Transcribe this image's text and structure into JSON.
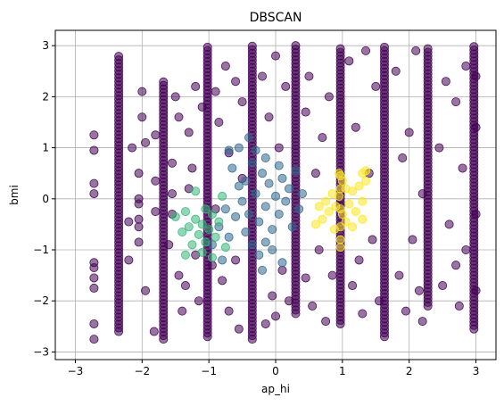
{
  "chart_data": {
    "type": "scatter",
    "title": "DBSCAN",
    "xlabel": "ap_hi",
    "ylabel": "bmi",
    "xlim": [
      -3.3,
      3.3
    ],
    "ylim": [
      -3.15,
      3.3
    ],
    "xticks": [
      -3,
      -2,
      -1,
      0,
      1,
      2,
      3
    ],
    "xtick_labels": [
      "−3",
      "−2",
      "−1",
      "0",
      "1",
      "2",
      "3"
    ],
    "yticks": [
      -3,
      -2,
      -1,
      0,
      1,
      2,
      3
    ],
    "ytick_labels": [
      "−3",
      "−2",
      "−1",
      "0",
      "1",
      "2",
      "3"
    ],
    "grid": true,
    "colormap": "viridis",
    "marker_alpha": 0.55,
    "colors": {
      "noise": "#440154",
      "cluster_1": "#31688e",
      "cluster_2": "#35b779",
      "cluster_3": "#fde725"
    },
    "columns": [
      {
        "x": -2.35,
        "ymin": -2.6,
        "ymax": 2.8,
        "cluster": "noise"
      },
      {
        "x": -1.68,
        "ymin": -2.75,
        "ymax": 2.3,
        "cluster": "noise"
      },
      {
        "x": -1.02,
        "ymin": -2.7,
        "ymax": 3.0,
        "cluster": "noise"
      },
      {
        "x": -0.35,
        "ymin": -2.75,
        "ymax": 3.0,
        "cluster": "noise"
      },
      {
        "x": 0.3,
        "ymin": -2.25,
        "ymax": 3.0,
        "cluster": "noise"
      },
      {
        "x": 0.97,
        "ymin": -2.45,
        "ymax": 3.0,
        "cluster": "noise"
      },
      {
        "x": 1.63,
        "ymin": -2.7,
        "ymax": 3.0,
        "cluster": "noise"
      },
      {
        "x": 2.28,
        "ymin": -2.1,
        "ymax": 3.0,
        "cluster": "noise"
      },
      {
        "x": 2.97,
        "ymin": -2.55,
        "ymax": 3.0,
        "cluster": "noise"
      }
    ],
    "series": [
      {
        "cluster": "noise",
        "points": [
          [
            -2.72,
            1.25
          ],
          [
            -2.72,
            0.95
          ],
          [
            -2.72,
            0.3
          ],
          [
            -2.72,
            0.1
          ],
          [
            -2.72,
            -1.25
          ],
          [
            -2.72,
            -1.35
          ],
          [
            -2.72,
            -1.55
          ],
          [
            -2.72,
            -1.75
          ],
          [
            -2.72,
            -2.45
          ],
          [
            -2.72,
            -2.75
          ],
          [
            -2.2,
            -0.45
          ],
          [
            -2.05,
            -0.1
          ],
          [
            -2.05,
            -0.4
          ],
          [
            -2.05,
            0.0
          ],
          [
            -2.05,
            -0.55
          ],
          [
            -2.05,
            -0.85
          ],
          [
            -2.05,
            0.5
          ],
          [
            -1.95,
            1.1
          ],
          [
            -1.95,
            -1.8
          ],
          [
            -1.82,
            -2.6
          ],
          [
            -2.0,
            1.6
          ],
          [
            -2.0,
            2.1
          ],
          [
            -1.8,
            0.35
          ],
          [
            -1.8,
            1.25
          ],
          [
            -1.8,
            -0.25
          ],
          [
            -1.55,
            0.1
          ],
          [
            -1.55,
            0.7
          ],
          [
            -1.55,
            -0.3
          ],
          [
            -1.45,
            1.6
          ],
          [
            -1.45,
            -1.5
          ],
          [
            -1.4,
            -2.2
          ],
          [
            -1.35,
            -1.7
          ],
          [
            -1.3,
            1.3
          ],
          [
            -1.3,
            0.2
          ],
          [
            -1.2,
            2.2
          ],
          [
            -1.2,
            -1.1
          ],
          [
            -1.15,
            -2.0
          ],
          [
            -1.1,
            1.8
          ],
          [
            -0.9,
            2.1
          ],
          [
            -0.9,
            -0.2
          ],
          [
            -0.85,
            1.5
          ],
          [
            -0.8,
            -1.6
          ],
          [
            -0.75,
            2.6
          ],
          [
            -0.7,
            -2.2
          ],
          [
            -0.7,
            0.9
          ],
          [
            -0.6,
            -1.2
          ],
          [
            -0.6,
            2.3
          ],
          [
            -0.55,
            -2.55
          ],
          [
            -0.5,
            0.4
          ],
          [
            -0.5,
            1.9
          ],
          [
            -0.2,
            2.4
          ],
          [
            -0.15,
            -2.45
          ],
          [
            -0.1,
            1.6
          ],
          [
            -0.05,
            -1.9
          ],
          [
            0.0,
            2.8
          ],
          [
            0.0,
            -2.3
          ],
          [
            0.05,
            1.0
          ],
          [
            0.1,
            -1.4
          ],
          [
            0.15,
            2.2
          ],
          [
            0.2,
            -2.0
          ],
          [
            0.45,
            1.7
          ],
          [
            0.45,
            -1.55
          ],
          [
            0.5,
            2.4
          ],
          [
            0.55,
            -2.1
          ],
          [
            0.6,
            0.5
          ],
          [
            0.65,
            -1.0
          ],
          [
            0.7,
            1.2
          ],
          [
            0.75,
            -2.4
          ],
          [
            0.8,
            2.0
          ],
          [
            0.85,
            -1.5
          ],
          [
            1.1,
            2.7
          ],
          [
            1.15,
            -1.7
          ],
          [
            1.2,
            1.4
          ],
          [
            1.25,
            -1.2
          ],
          [
            1.3,
            -2.25
          ],
          [
            1.35,
            2.9
          ],
          [
            1.4,
            0.5
          ],
          [
            1.45,
            -0.8
          ],
          [
            1.5,
            2.2
          ],
          [
            1.55,
            -2.0
          ],
          [
            1.8,
            2.5
          ],
          [
            1.85,
            -1.5
          ],
          [
            1.9,
            0.8
          ],
          [
            1.95,
            -2.2
          ],
          [
            2.0,
            1.3
          ],
          [
            2.05,
            -0.8
          ],
          [
            2.1,
            2.9
          ],
          [
            2.15,
            -1.8
          ],
          [
            2.2,
            0.1
          ],
          [
            2.2,
            -2.4
          ],
          [
            2.45,
            1.0
          ],
          [
            2.5,
            -1.7
          ],
          [
            2.55,
            2.3
          ],
          [
            2.6,
            -0.5
          ],
          [
            2.7,
            1.9
          ],
          [
            2.7,
            -1.3
          ],
          [
            2.75,
            -2.1
          ],
          [
            2.8,
            0.6
          ],
          [
            2.85,
            2.6
          ],
          [
            2.85,
            -1.0
          ],
          [
            3.0,
            1.4
          ],
          [
            3.0,
            -0.3
          ],
          [
            3.0,
            2.4
          ],
          [
            3.0,
            -1.8
          ],
          [
            -1.5,
            2.0
          ],
          [
            -1.6,
            -0.9
          ],
          [
            -2.15,
            1.0
          ],
          [
            -2.2,
            -1.2
          ],
          [
            -1.25,
            0.6
          ],
          [
            -0.95,
            -1.3
          ]
        ]
      },
      {
        "cluster": "cluster_1",
        "points": [
          [
            -0.7,
            0.95
          ],
          [
            -0.65,
            0.6
          ],
          [
            -0.55,
            0.25
          ],
          [
            -0.5,
            -0.05
          ],
          [
            -0.45,
            0.35
          ],
          [
            -0.4,
            -0.3
          ],
          [
            -0.35,
            0.7
          ],
          [
            -0.3,
            0.1
          ],
          [
            -0.25,
            -0.45
          ],
          [
            -0.2,
            0.5
          ],
          [
            -0.15,
            -0.15
          ],
          [
            -0.1,
            0.3
          ],
          [
            -0.05,
            -0.6
          ],
          [
            0.0,
            0.05
          ],
          [
            0.05,
            -0.3
          ],
          [
            0.1,
            0.4
          ],
          [
            0.15,
            -0.05
          ],
          [
            0.2,
            0.2
          ],
          [
            -0.6,
            -0.35
          ],
          [
            -0.45,
            -0.65
          ],
          [
            -0.35,
            -0.9
          ],
          [
            -0.25,
            -1.1
          ],
          [
            -0.15,
            -0.85
          ],
          [
            -0.05,
            -1.0
          ],
          [
            -0.3,
            0.95
          ],
          [
            -0.15,
            0.8
          ],
          [
            0.05,
            0.65
          ],
          [
            -0.75,
            -0.2
          ],
          [
            -0.85,
            -0.55
          ],
          [
            -0.95,
            -0.9
          ],
          [
            -0.8,
            -1.2
          ],
          [
            -0.7,
            -0.75
          ],
          [
            0.25,
            -0.55
          ],
          [
            0.35,
            -0.2
          ],
          [
            0.4,
            0.1
          ],
          [
            -0.4,
            1.2
          ],
          [
            -0.55,
            1.0
          ],
          [
            0.1,
            -1.25
          ],
          [
            -0.2,
            -1.4
          ],
          [
            0.3,
            0.55
          ]
        ]
      },
      {
        "cluster": "cluster_2",
        "points": [
          [
            -1.5,
            -0.35
          ],
          [
            -1.35,
            -0.25
          ],
          [
            -1.3,
            -0.55
          ],
          [
            -1.2,
            -0.4
          ],
          [
            -1.15,
            -0.7
          ],
          [
            -1.1,
            -0.5
          ],
          [
            -1.05,
            -0.85
          ],
          [
            -1.0,
            -0.6
          ],
          [
            -0.95,
            -0.3
          ],
          [
            -0.9,
            -0.75
          ],
          [
            -1.25,
            -0.9
          ],
          [
            -1.1,
            -1.05
          ],
          [
            -0.95,
            -1.15
          ],
          [
            -1.4,
            -0.65
          ],
          [
            -1.2,
            0.15
          ],
          [
            -1.05,
            -0.2
          ],
          [
            -0.85,
            -0.45
          ],
          [
            -0.8,
            0.05
          ],
          [
            -1.35,
            -1.1
          ],
          [
            -0.75,
            -0.95
          ]
        ]
      },
      {
        "cluster": "cluster_3",
        "points": [
          [
            0.65,
            -0.15
          ],
          [
            0.7,
            -0.4
          ],
          [
            0.75,
            -0.05
          ],
          [
            0.8,
            -0.25
          ],
          [
            0.85,
            0.1
          ],
          [
            0.9,
            -0.15
          ],
          [
            0.95,
            0.05
          ],
          [
            1.0,
            -0.3
          ],
          [
            1.05,
            0.2
          ],
          [
            1.1,
            -0.1
          ],
          [
            1.15,
            0.15
          ],
          [
            1.2,
            -0.25
          ],
          [
            1.25,
            0.25
          ],
          [
            1.3,
            -0.05
          ],
          [
            1.35,
            0.35
          ],
          [
            0.95,
            0.5
          ],
          [
            1.0,
            0.35
          ],
          [
            1.05,
            -0.45
          ],
          [
            0.97,
            -0.8
          ],
          [
            0.97,
            -0.95
          ],
          [
            0.97,
            -0.55
          ],
          [
            0.97,
            -0.2
          ],
          [
            0.97,
            0.2
          ],
          [
            0.97,
            0.45
          ],
          [
            0.6,
            -0.5
          ],
          [
            1.3,
            -0.4
          ],
          [
            1.3,
            0.5
          ],
          [
            1.35,
            0.55
          ],
          [
            0.88,
            -0.6
          ],
          [
            1.15,
            -0.55
          ]
        ]
      }
    ]
  }
}
